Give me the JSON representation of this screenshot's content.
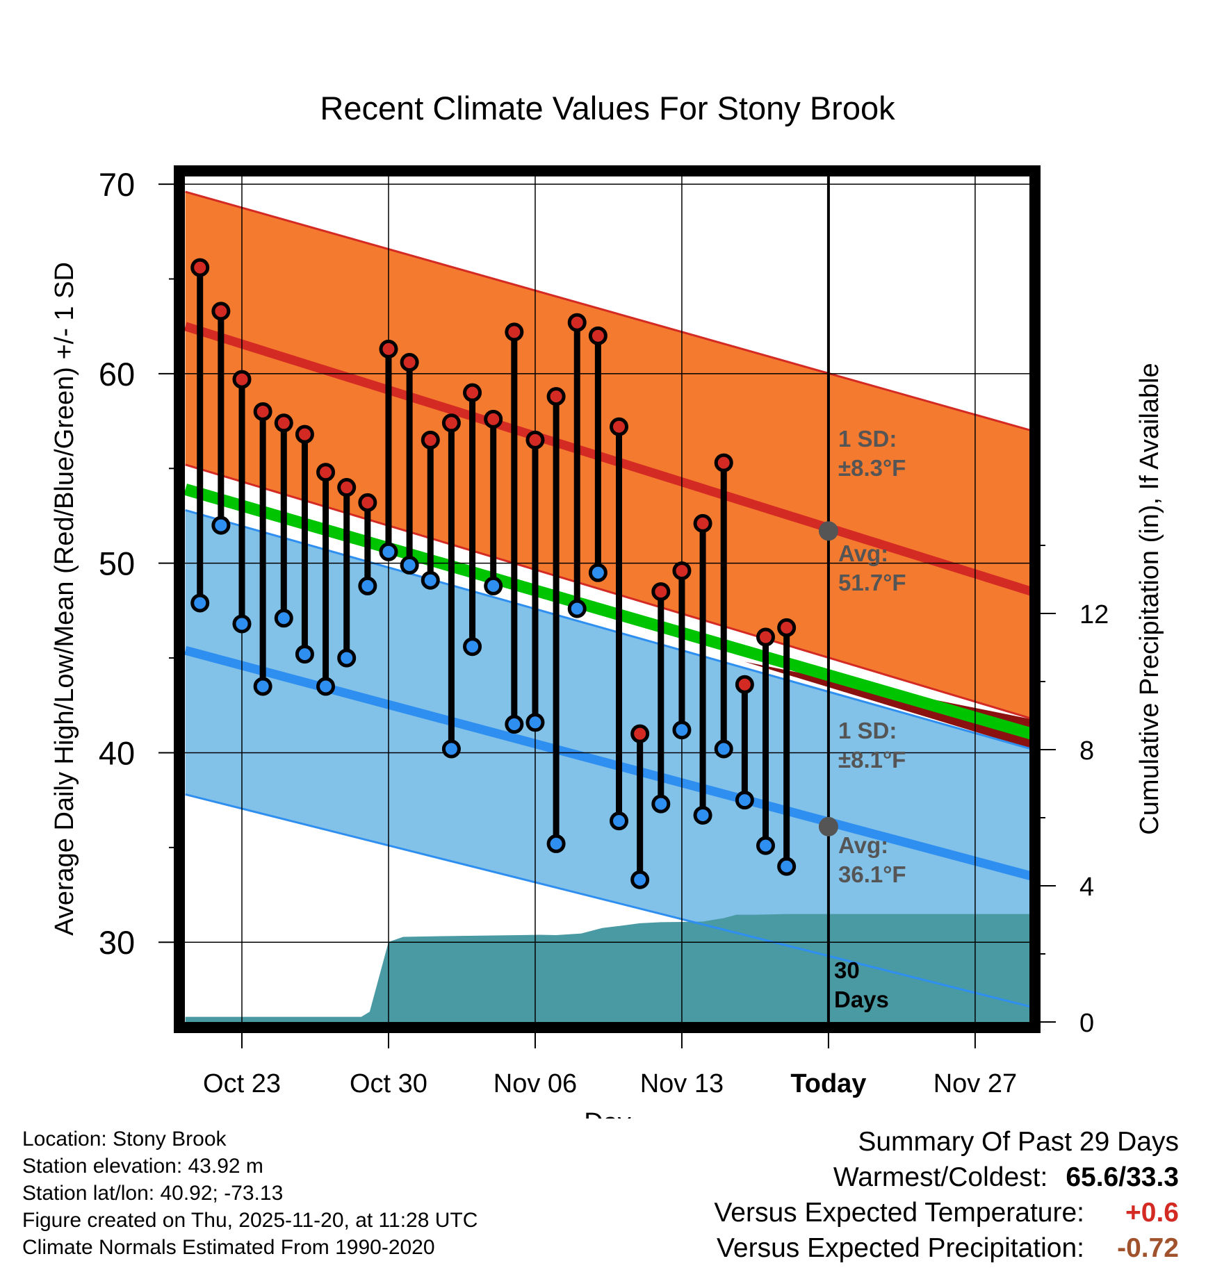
{
  "chart_data": {
    "type": "line",
    "title": "Recent Climate Values For Stony Brook",
    "xlabel": "Day",
    "ylabel": "Average Daily High/Low/Mean (Red/Blue/Green) +/- 1 SD",
    "y2label": "Cumulative Precipitation (in), If Available",
    "ylim": [
      25.5,
      70.7
    ],
    "y2lim": [
      0,
      22.5
    ],
    "xlim": [
      -3,
      38
    ],
    "x_unit": "days since Oct 23",
    "yticks": [
      "30",
      "40",
      "50",
      "60",
      "70"
    ],
    "y2ticks": [
      "0",
      "4",
      "8",
      "12"
    ],
    "xticks": [
      {
        "x": 0,
        "label": "Oct 23"
      },
      {
        "x": 7,
        "label": "Oct 30"
      },
      {
        "x": 14,
        "label": "Nov 06"
      },
      {
        "x": 21,
        "label": "Nov 13"
      },
      {
        "x": 28,
        "label": "Today"
      },
      {
        "x": 35,
        "label": "Nov 27"
      }
    ],
    "today_x": 28,
    "normals": {
      "x": [
        -2.7,
        38
      ],
      "avg_high": [
        62.5,
        48.4
      ],
      "high_upper": [
        69.6,
        56.9
      ],
      "high_lower": [
        55.2,
        41.7
      ],
      "avg_low": [
        45.4,
        33.4
      ],
      "low_upper": [
        52.8,
        40.1
      ],
      "low_lower": [
        37.8,
        26.5
      ],
      "avg_mean": [
        53.9,
        40.9
      ]
    },
    "daily": {
      "x": [
        -2,
        -1,
        0,
        1,
        2,
        3,
        4,
        5,
        6,
        7,
        8,
        9,
        10,
        11,
        12,
        13,
        14,
        15,
        16,
        17,
        18,
        19,
        20,
        21,
        22,
        23,
        24,
        25,
        26,
        27
      ],
      "high": [
        65.6,
        63.3,
        59.7,
        58.0,
        57.4,
        56.8,
        54.8,
        54.0,
        53.2,
        61.3,
        60.6,
        56.5,
        57.4,
        59.0,
        57.6,
        62.2,
        56.5,
        58.8,
        62.7,
        62.0,
        57.2,
        41.0,
        48.5,
        49.6,
        52.1,
        55.3,
        43.6,
        46.1,
        46.6,
        null
      ],
      "low": [
        47.9,
        52.0,
        46.8,
        43.5,
        47.1,
        45.2,
        43.5,
        45.0,
        48.8,
        50.6,
        49.9,
        49.1,
        40.2,
        45.6,
        48.8,
        41.5,
        41.6,
        35.2,
        47.6,
        49.5,
        36.4,
        33.3,
        37.3,
        41.2,
        36.7,
        40.2,
        37.5,
        35.1,
        34.0,
        null
      ]
    },
    "precip": {
      "x": [
        -2.7,
        5.7,
        6.1,
        7.0,
        7.7,
        9.5,
        13.2,
        14.2,
        15.0,
        16.2,
        17.2,
        18.0,
        19.0,
        20.0,
        21.0,
        22.0,
        23.0,
        23.6,
        24.5,
        26.0,
        28.0,
        38.0
      ],
      "y": [
        0.15,
        0.15,
        0.3,
        2.35,
        2.5,
        2.52,
        2.55,
        2.56,
        2.55,
        2.6,
        2.76,
        2.82,
        2.9,
        2.93,
        2.94,
        2.95,
        3.05,
        3.15,
        3.15,
        3.17,
        3.17,
        3.17
      ]
    },
    "annotations": {
      "high_sd": {
        "line1": "1 SD:",
        "line2": "±8.3°F"
      },
      "high_avg": {
        "line1": "Avg:",
        "line2": "51.7°F"
      },
      "low_sd": {
        "line1": "1 SD:",
        "line2": "±8.1°F"
      },
      "low_avg": {
        "line1": "Avg:",
        "line2": "36.1°F"
      },
      "days": {
        "line1": "30",
        "line2": "Days"
      }
    },
    "today_markers": {
      "high": 51.7,
      "low": 36.1
    },
    "colors": {
      "high_band": "#f47a2f",
      "high_band_edge": "#d42a24",
      "high_line": "#d42a24",
      "low_band": "#82c1e8",
      "low_band_edge": "#2f8ff0",
      "low_line": "#2f8ff0",
      "mean_line": "#00c400",
      "overlap": "#8b1010",
      "precip": "#4a9aa4",
      "annot": "#555555",
      "high_marker": "#d42a24",
      "low_marker": "#2f8ff0"
    }
  },
  "footer": {
    "location": "Location: Stony Brook",
    "elevation": "Station elevation: 43.92 m",
    "latlon": "Station lat/lon: 40.92; -73.13",
    "created": "Figure created on Thu, 2025-11-20, at 11:28 UTC",
    "normals": "Climate Normals Estimated From 1990-2020"
  },
  "summary": {
    "title": "Summary Of Past 29 Days",
    "warmest_label": "Warmest/Coldest:",
    "warmest_value": "65.6/33.3",
    "temp_label": "Versus Expected Temperature:",
    "temp_value": "+0.6",
    "temp_color": "#d42a24",
    "precip_label": "Versus Expected Precipitation:",
    "precip_value": "-0.72",
    "precip_color": "#a0522d"
  }
}
